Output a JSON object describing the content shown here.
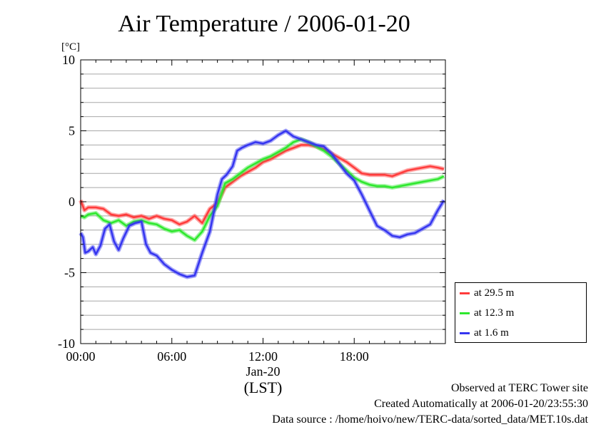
{
  "chart_data": {
    "type": "line",
    "title": "Air Temperature / 2006-01-20",
    "ylabel": "[°C]",
    "xlabel": "(LST)",
    "x_date_label": "Jan-20",
    "ylim": [
      -10,
      10
    ],
    "xlim": [
      0,
      24
    ],
    "yticks": [
      10,
      5,
      0,
      -5,
      -10
    ],
    "ytick_labels": [
      "10",
      "5",
      "0",
      "-5",
      "-10"
    ],
    "xticks": [
      0,
      6,
      12,
      18
    ],
    "xtick_labels": [
      "00:00",
      "06:00",
      "12:00",
      "18:00"
    ],
    "grid": true,
    "legend_position": "bottom-right, outside plot",
    "series": [
      {
        "name": "at 29.5 m",
        "color": "#ff3b3b",
        "x": [
          0,
          0.25,
          0.5,
          1,
          1.5,
          2,
          2.5,
          3,
          3.5,
          4,
          4.5,
          5,
          5.5,
          6,
          6.5,
          7,
          7.5,
          8,
          8.5,
          9,
          9.5,
          10,
          10.5,
          11,
          11.5,
          12,
          12.5,
          13,
          13.5,
          14,
          14.5,
          15,
          15.5,
          16,
          16.5,
          17,
          17.5,
          18,
          18.5,
          19,
          19.5,
          20,
          20.5,
          21,
          21.5,
          22,
          22.5,
          23,
          23.5,
          23.9
        ],
        "y": [
          0.1,
          -0.6,
          -0.4,
          -0.4,
          -0.5,
          -0.9,
          -1.0,
          -0.9,
          -1.1,
          -1.0,
          -1.2,
          -1.0,
          -1.2,
          -1.3,
          -1.6,
          -1.4,
          -1.0,
          -1.5,
          -0.5,
          -0.1,
          1.0,
          1.4,
          1.8,
          2.1,
          2.4,
          2.8,
          3.0,
          3.3,
          3.6,
          3.8,
          4.0,
          4.0,
          3.9,
          3.7,
          3.4,
          3.1,
          2.8,
          2.4,
          2.0,
          1.9,
          1.9,
          1.9,
          1.8,
          2.0,
          2.2,
          2.3,
          2.4,
          2.5,
          2.4,
          2.3
        ]
      },
      {
        "name": "at 12.3 m",
        "color": "#2ee82e",
        "x": [
          0,
          0.25,
          0.5,
          1,
          1.5,
          2,
          2.5,
          3,
          3.5,
          4,
          4.5,
          5,
          5.5,
          6,
          6.5,
          7,
          7.5,
          8,
          8.5,
          9,
          9.5,
          10,
          10.5,
          11,
          11.5,
          12,
          12.5,
          13,
          13.5,
          14,
          14.5,
          15,
          15.5,
          16,
          16.5,
          17,
          17.5,
          18,
          18.5,
          19,
          19.5,
          20,
          20.5,
          21,
          21.5,
          22,
          22.5,
          23,
          23.5,
          23.9
        ],
        "y": [
          -1.0,
          -1.1,
          -0.9,
          -0.8,
          -1.3,
          -1.5,
          -1.3,
          -1.7,
          -1.4,
          -1.3,
          -1.5,
          -1.6,
          -1.9,
          -2.1,
          -2.0,
          -2.4,
          -2.7,
          -2.1,
          -1.0,
          -0.3,
          1.3,
          1.6,
          2.0,
          2.4,
          2.7,
          3.0,
          3.2,
          3.5,
          3.8,
          4.2,
          4.4,
          4.2,
          3.9,
          3.6,
          3.2,
          2.7,
          2.2,
          1.7,
          1.4,
          1.2,
          1.1,
          1.1,
          1.0,
          1.1,
          1.2,
          1.3,
          1.4,
          1.5,
          1.6,
          1.8
        ]
      },
      {
        "name": "at 1.6 m",
        "color": "#3535f0",
        "x": [
          0,
          0.15,
          0.3,
          0.5,
          0.8,
          1,
          1.3,
          1.6,
          1.9,
          2.2,
          2.5,
          2.8,
          3.2,
          3.6,
          4.0,
          4.3,
          4.6,
          5.0,
          5.5,
          6.0,
          6.5,
          7.0,
          7.5,
          8.0,
          8.5,
          9.0,
          9.3,
          9.6,
          10,
          10.3,
          10.6,
          11,
          11.5,
          12,
          12.5,
          13,
          13.5,
          14,
          14.5,
          15,
          15.5,
          16,
          16.5,
          17,
          17.5,
          18,
          18.5,
          19,
          19.5,
          20,
          20.5,
          21,
          21.5,
          22,
          22.5,
          23,
          23.5,
          23.9
        ],
        "y": [
          -2.2,
          -2.5,
          -3.6,
          -3.5,
          -3.2,
          -3.7,
          -3.1,
          -1.9,
          -1.6,
          -2.8,
          -3.4,
          -2.6,
          -1.7,
          -1.5,
          -1.4,
          -3.0,
          -3.6,
          -3.8,
          -4.4,
          -4.8,
          -5.1,
          -5.3,
          -5.2,
          -3.6,
          -2.1,
          0.5,
          1.6,
          1.9,
          2.5,
          3.6,
          3.8,
          4.0,
          4.2,
          4.1,
          4.3,
          4.7,
          5.0,
          4.6,
          4.4,
          4.2,
          4.0,
          3.9,
          3.4,
          2.7,
          2.0,
          1.5,
          0.5,
          -0.6,
          -1.7,
          -2.0,
          -2.4,
          -2.5,
          -2.3,
          -2.2,
          -1.9,
          -1.6,
          -0.6,
          0.1
        ]
      }
    ]
  },
  "footer": {
    "line1": "Observed at TERC Tower site",
    "line2": "Created Automatically at 2006-01-20/23:55:30",
    "line3": "Data source : /home/hoivo/new/TERC-data/sorted_data/MET.10s.dat"
  }
}
